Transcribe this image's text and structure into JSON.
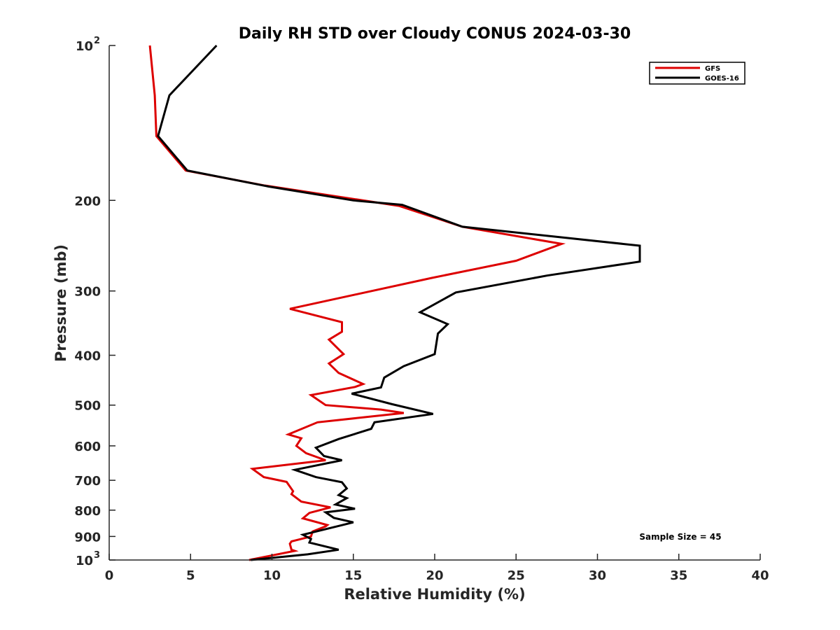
{
  "chart_data": {
    "type": "line",
    "title": "Daily RH STD over Cloudy CONUS 2024-03-30",
    "xlabel": "Relative Humidity (%)",
    "ylabel": "Pressure (mb)",
    "xlim": [
      0,
      40
    ],
    "ylim": [
      100,
      1000
    ],
    "y_scale": "log",
    "y_reversed": true,
    "grid": false,
    "legend_position": "top-right",
    "x_ticks": [
      0,
      5,
      10,
      15,
      20,
      25,
      30,
      35,
      40
    ],
    "x_tick_labels": [
      "0",
      "5",
      "10",
      "15",
      "20",
      "25",
      "30",
      "35",
      "40"
    ],
    "y_ticks": [
      200,
      300,
      400,
      500,
      600,
      700,
      800,
      900
    ],
    "y_tick_labels": [
      "200",
      "300",
      "400",
      "500",
      "600",
      "700",
      "800",
      "900"
    ],
    "y_ticks_exponent": [
      {
        "value": 100,
        "base": "10",
        "exp": "2"
      },
      {
        "value": 1000,
        "base": "10",
        "exp": "3"
      }
    ],
    "annotation": "Sample Size = 45",
    "series": [
      {
        "name": "GFS",
        "color": "#dd0000",
        "points": [
          [
            2.5,
            100
          ],
          [
            2.8,
            125
          ],
          [
            2.9,
            150
          ],
          [
            4.7,
            175
          ],
          [
            9.5,
            187
          ],
          [
            17.8,
            205
          ],
          [
            21.7,
            225
          ],
          [
            27.8,
            243
          ],
          [
            25.0,
            262
          ],
          [
            19.8,
            283
          ],
          [
            11.1,
            325
          ],
          [
            14.3,
            345
          ],
          [
            14.3,
            360
          ],
          [
            13.5,
            373
          ],
          [
            14.4,
            398
          ],
          [
            13.5,
            415
          ],
          [
            14.1,
            433
          ],
          [
            15.6,
            455
          ],
          [
            15.1,
            461
          ],
          [
            12.4,
            478
          ],
          [
            13.3,
            500
          ],
          [
            16.7,
            510
          ],
          [
            18.1,
            518
          ],
          [
            12.8,
            540
          ],
          [
            11.0,
            570
          ],
          [
            11.8,
            580
          ],
          [
            11.5,
            600
          ],
          [
            12.1,
            620
          ],
          [
            13.3,
            640
          ],
          [
            8.8,
            665
          ],
          [
            9.5,
            690
          ],
          [
            10.9,
            705
          ],
          [
            11.3,
            735
          ],
          [
            11.2,
            745
          ],
          [
            11.8,
            770
          ],
          [
            13.6,
            790
          ],
          [
            12.3,
            810
          ],
          [
            11.9,
            830
          ],
          [
            13.4,
            855
          ],
          [
            13.3,
            860
          ],
          [
            12.5,
            880
          ],
          [
            12.4,
            900
          ],
          [
            11.2,
            920
          ],
          [
            11.1,
            930
          ],
          [
            11.2,
            955
          ],
          [
            11.4,
            960
          ],
          [
            8.6,
            1000
          ]
        ]
      },
      {
        "name": "GOES-16",
        "color": "#000000",
        "points": [
          [
            6.6,
            100
          ],
          [
            3.7,
            125
          ],
          [
            3.0,
            150
          ],
          [
            4.8,
            175
          ],
          [
            9.8,
            188
          ],
          [
            15.0,
            200
          ],
          [
            18.0,
            204
          ],
          [
            21.7,
            225
          ],
          [
            32.6,
            245
          ],
          [
            32.6,
            263
          ],
          [
            26.9,
            280
          ],
          [
            21.3,
            302
          ],
          [
            19.1,
            330
          ],
          [
            20.8,
            348
          ],
          [
            20.2,
            363
          ],
          [
            20.0,
            398
          ],
          [
            18.1,
            420
          ],
          [
            16.9,
            442
          ],
          [
            16.7,
            462
          ],
          [
            14.9,
            475
          ],
          [
            17.4,
            498
          ],
          [
            19.9,
            520
          ],
          [
            16.3,
            540
          ],
          [
            16.1,
            556
          ],
          [
            14.1,
            582
          ],
          [
            12.7,
            605
          ],
          [
            13.2,
            628
          ],
          [
            14.3,
            640
          ],
          [
            11.4,
            668
          ],
          [
            12.7,
            690
          ],
          [
            14.3,
            706
          ],
          [
            14.6,
            726
          ],
          [
            14.1,
            748
          ],
          [
            14.6,
            758
          ],
          [
            13.9,
            780
          ],
          [
            15.1,
            795
          ],
          [
            13.3,
            808
          ],
          [
            13.8,
            828
          ],
          [
            15.0,
            845
          ],
          [
            14.0,
            860
          ],
          [
            11.9,
            893
          ],
          [
            12.4,
            910
          ],
          [
            12.3,
            925
          ],
          [
            14.1,
            955
          ],
          [
            12.2,
            975
          ],
          [
            8.7,
            1000
          ]
        ]
      }
    ]
  }
}
